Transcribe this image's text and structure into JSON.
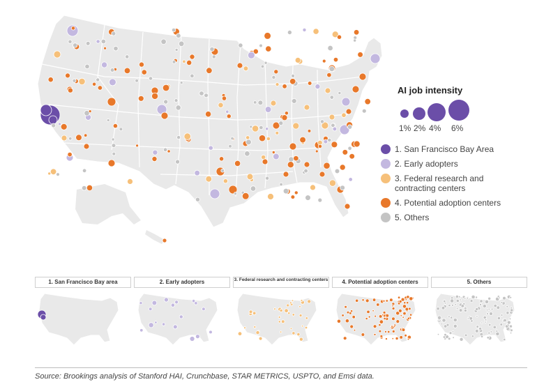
{
  "legend": {
    "title": "AI job intensity",
    "size_labels": [
      "1%",
      "2%",
      "4%",
      "6%"
    ],
    "categories": [
      {
        "label": "1. San Francisco Bay Area",
        "color": "#6b4ea8"
      },
      {
        "label": "2. Early adopters",
        "color": "#c3b8e0"
      },
      {
        "label": "3. Federal research and contracting centers",
        "color": "#f6c07a"
      },
      {
        "label": "4. Potential adoption centers",
        "color": "#e8782a"
      },
      {
        "label": "5. Others",
        "color": "#c4c4c4"
      }
    ]
  },
  "panels": [
    {
      "title": "1. San Francisco Bay area",
      "color": "#6b4ea8"
    },
    {
      "title": "2. Early adopters",
      "color": "#c3b8e0"
    },
    {
      "title": "3. Federal research and contracting centers",
      "color": "#f6c07a"
    },
    {
      "title": "4. Potential adoption centers",
      "color": "#e8782a"
    },
    {
      "title": "5. Others",
      "color": "#c4c4c4"
    }
  ],
  "source": "Source: Brookings analysis of Stanford HAI, Crunchbase, STAR METRICS, USPTO, and Emsi data.",
  "colors": {
    "land": "#e9e9e9",
    "border": "#ffffff"
  }
}
